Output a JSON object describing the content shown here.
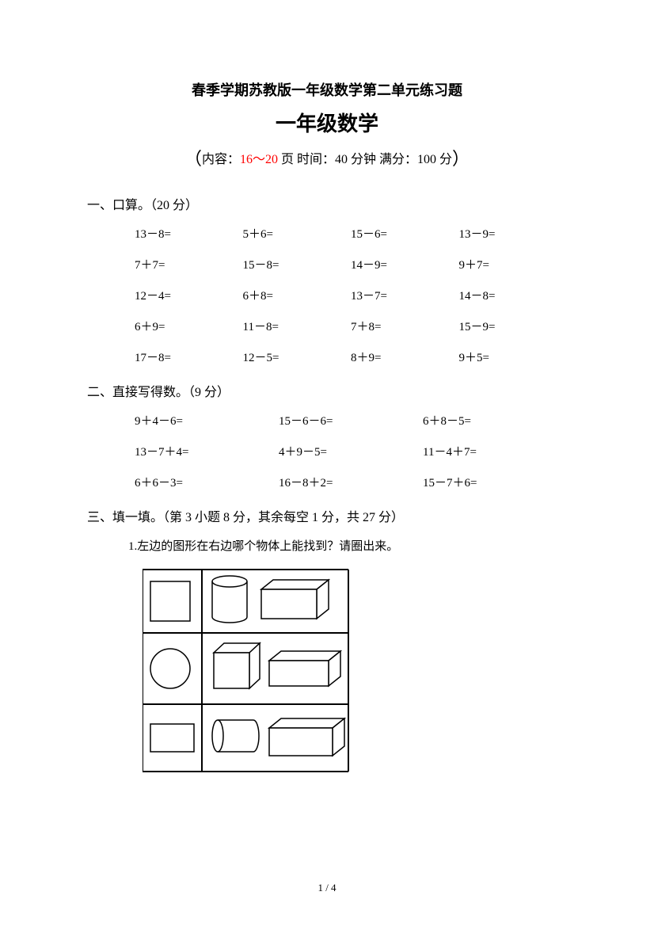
{
  "title": {
    "main": "春季学期苏教版一年级数学第二单元练习题",
    "sub": "一年级数学"
  },
  "meta": {
    "open_paren": "（",
    "content_prefix": "内容：",
    "pages": "16～20",
    "pages_suffix": " 页",
    "time": "  时间：40 分钟",
    "score": "  满分：100 分",
    "close_paren": "）"
  },
  "section1": {
    "heading": "一、口算。（20 分）",
    "rows": [
      [
        "13－8=",
        "5＋6=",
        "15－6=",
        "13－9="
      ],
      [
        "7＋7=",
        "15－8=",
        "14－9=",
        "9＋7="
      ],
      [
        "12－4=",
        "6＋8=",
        "13－7=",
        "14－8="
      ],
      [
        "6＋9=",
        "11－8=",
        "7＋8=",
        "15－9="
      ],
      [
        "17－8=",
        "12－5=",
        "8＋9=",
        " 9＋5="
      ]
    ]
  },
  "section2": {
    "heading": "二、直接写得数。（9 分）",
    "rows": [
      [
        "9＋4－6=",
        "15－6－6=",
        "6＋8－5="
      ],
      [
        "13－7＋4=",
        "4＋9－5=",
        "11－4＋7="
      ],
      [
        "6＋6－3=",
        "16－8＋2=",
        "15－7＋6="
      ]
    ]
  },
  "section3": {
    "heading": "三、填一填。（第 3 小题 8 分，其余每空 1 分，共 27 分）",
    "q1": "1.左边的图形在右边哪个物体上能找到？请圈出来。"
  },
  "figure": {
    "bg": "#ffffff",
    "stroke": "#000000",
    "stroke_width": 1.5
  },
  "page_number": "1 / 4"
}
